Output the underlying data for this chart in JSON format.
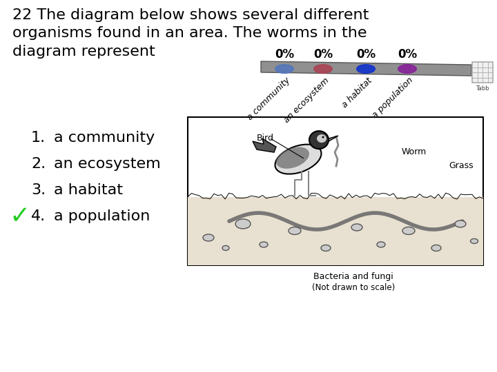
{
  "title_text": "22 The diagram below shows several different\norganisms found in an area. The worms in the\ndiagram represent",
  "options": [
    "a community",
    "an ecosystem",
    "a habitat",
    "a population"
  ],
  "option_numbers": [
    "1.",
    "2.",
    "3.",
    "4."
  ],
  "correct_index": 3,
  "checkmark_color": "#22cc22",
  "bg_color": "#ffffff",
  "title_fontsize": 16,
  "option_fontsize": 16,
  "bar_color": "#888888",
  "dot_colors": [
    "#5577bb",
    "#aa4455",
    "#1133cc",
    "#882299"
  ],
  "percent_labels": [
    "0%",
    "0%",
    "0%",
    "0%"
  ],
  "bar_labels": [
    "a community",
    "an ecosystem",
    "a habitat",
    "a population"
  ],
  "note_line1": "Bacteria and fungi",
  "note_line2": "(Not drawn to scale)",
  "tabb_label": "Tabb",
  "diagram_labels": [
    "Bird",
    "Worm",
    "Grass"
  ]
}
